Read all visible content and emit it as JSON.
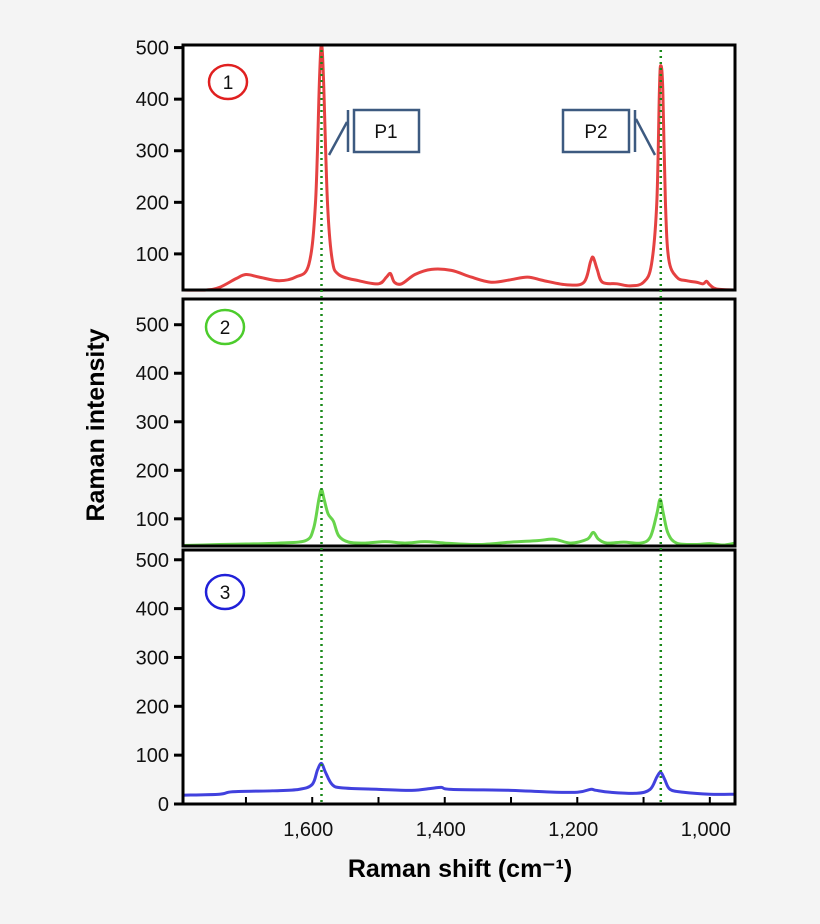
{
  "chart_data": {
    "type": "line",
    "xlabel": "Raman shift (cm⁻¹)",
    "ylabel": "Raman intensity",
    "xlim": [
      1795,
      962
    ],
    "x_reversed": true,
    "x_ticks": [
      1700,
      1600,
      1500,
      1400,
      1300,
      1200,
      1100,
      1000
    ],
    "x_tick_labels": [
      {
        "value": 1600,
        "label": "1,600"
      },
      {
        "value": 1400,
        "label": "1,400"
      },
      {
        "value": 1200,
        "label": "1,200"
      },
      {
        "value": 1000,
        "label": "1,000"
      }
    ],
    "grid": false,
    "reference_lines": [
      {
        "x": 1586,
        "color": "#1a8a1a",
        "style": "dotted"
      },
      {
        "x": 1074,
        "color": "#1a8a1a",
        "style": "dotted"
      }
    ],
    "callouts": [
      {
        "label": "P1",
        "x": 1586,
        "color": "#3d5a80"
      },
      {
        "label": "P2",
        "x": 1074,
        "color": "#3d5a80"
      }
    ],
    "panels": [
      {
        "marker": "1",
        "color": "#e02020",
        "ylim": [
          30,
          505
        ],
        "y_ticks": [
          {
            "value": 100,
            "label": "100"
          },
          {
            "value": 200,
            "label": "200"
          },
          {
            "value": 300,
            "label": "300"
          },
          {
            "value": 400,
            "label": "400"
          },
          {
            "value": 500,
            "label": "500"
          }
        ],
        "points": [
          [
            1795,
            30
          ],
          [
            1760,
            30
          ],
          [
            1740,
            35
          ],
          [
            1715,
            52
          ],
          [
            1700,
            60
          ],
          [
            1680,
            55
          ],
          [
            1650,
            48
          ],
          [
            1625,
            55
          ],
          [
            1605,
            80
          ],
          [
            1595,
            200
          ],
          [
            1589,
            440
          ],
          [
            1586,
            505
          ],
          [
            1583,
            440
          ],
          [
            1577,
            200
          ],
          [
            1570,
            90
          ],
          [
            1560,
            60
          ],
          [
            1530,
            48
          ],
          [
            1500,
            42
          ],
          [
            1488,
            55
          ],
          [
            1482,
            62
          ],
          [
            1476,
            45
          ],
          [
            1465,
            42
          ],
          [
            1445,
            60
          ],
          [
            1420,
            70
          ],
          [
            1390,
            68
          ],
          [
            1360,
            55
          ],
          [
            1330,
            45
          ],
          [
            1300,
            50
          ],
          [
            1275,
            55
          ],
          [
            1250,
            48
          ],
          [
            1215,
            40
          ],
          [
            1190,
            45
          ],
          [
            1180,
            85
          ],
          [
            1176,
            93
          ],
          [
            1170,
            70
          ],
          [
            1162,
            45
          ],
          [
            1140,
            42
          ],
          [
            1120,
            38
          ],
          [
            1100,
            45
          ],
          [
            1088,
            80
          ],
          [
            1080,
            200
          ],
          [
            1076,
            420
          ],
          [
            1074,
            465
          ],
          [
            1071,
            420
          ],
          [
            1067,
            200
          ],
          [
            1062,
            90
          ],
          [
            1050,
            55
          ],
          [
            1035,
            48
          ],
          [
            1020,
            45
          ],
          [
            1010,
            42
          ],
          [
            1005,
            47
          ],
          [
            1000,
            40
          ],
          [
            990,
            32
          ],
          [
            962,
            30
          ]
        ]
      },
      {
        "marker": "2",
        "color": "#4ccc2c",
        "ylim": [
          44,
          553
        ],
        "y_ticks": [
          {
            "value": 100,
            "label": "100"
          },
          {
            "value": 200,
            "label": "200"
          },
          {
            "value": 300,
            "label": "300"
          },
          {
            "value": 400,
            "label": "400"
          },
          {
            "value": 500,
            "label": "500"
          }
        ],
        "points": [
          [
            1795,
            45
          ],
          [
            1740,
            47
          ],
          [
            1700,
            48
          ],
          [
            1650,
            50
          ],
          [
            1610,
            55
          ],
          [
            1598,
            80
          ],
          [
            1590,
            140
          ],
          [
            1586,
            160
          ],
          [
            1582,
            140
          ],
          [
            1576,
            110
          ],
          [
            1568,
            95
          ],
          [
            1560,
            65
          ],
          [
            1545,
            52
          ],
          [
            1520,
            50
          ],
          [
            1490,
            53
          ],
          [
            1460,
            50
          ],
          [
            1430,
            53
          ],
          [
            1400,
            50
          ],
          [
            1350,
            47
          ],
          [
            1300,
            52
          ],
          [
            1260,
            55
          ],
          [
            1235,
            58
          ],
          [
            1210,
            50
          ],
          [
            1185,
            58
          ],
          [
            1176,
            72
          ],
          [
            1168,
            58
          ],
          [
            1155,
            50
          ],
          [
            1130,
            52
          ],
          [
            1105,
            50
          ],
          [
            1090,
            62
          ],
          [
            1080,
            110
          ],
          [
            1075,
            140
          ],
          [
            1070,
            110
          ],
          [
            1063,
            70
          ],
          [
            1050,
            50
          ],
          [
            1020,
            47
          ],
          [
            1000,
            49
          ],
          [
            980,
            46
          ],
          [
            962,
            50
          ]
        ]
      },
      {
        "marker": "3",
        "color": "#2020d8",
        "ylim": [
          0,
          520
        ],
        "y_ticks": [
          {
            "value": 0,
            "label": "0"
          },
          {
            "value": 100,
            "label": "100"
          },
          {
            "value": 200,
            "label": "200"
          },
          {
            "value": 300,
            "label": "300"
          },
          {
            "value": 400,
            "label": "400"
          },
          {
            "value": 500,
            "label": "500"
          }
        ],
        "points": [
          [
            1795,
            18
          ],
          [
            1740,
            20
          ],
          [
            1720,
            25
          ],
          [
            1660,
            27
          ],
          [
            1620,
            30
          ],
          [
            1600,
            40
          ],
          [
            1592,
            70
          ],
          [
            1586,
            83
          ],
          [
            1580,
            65
          ],
          [
            1570,
            40
          ],
          [
            1555,
            33
          ],
          [
            1500,
            30
          ],
          [
            1450,
            28
          ],
          [
            1420,
            32
          ],
          [
            1405,
            34
          ],
          [
            1390,
            30
          ],
          [
            1300,
            28
          ],
          [
            1250,
            25
          ],
          [
            1200,
            24
          ],
          [
            1180,
            30
          ],
          [
            1172,
            28
          ],
          [
            1150,
            24
          ],
          [
            1110,
            22
          ],
          [
            1090,
            30
          ],
          [
            1080,
            55
          ],
          [
            1074,
            65
          ],
          [
            1068,
            50
          ],
          [
            1060,
            30
          ],
          [
            1040,
            24
          ],
          [
            1000,
            20
          ],
          [
            962,
            20
          ]
        ]
      }
    ]
  }
}
